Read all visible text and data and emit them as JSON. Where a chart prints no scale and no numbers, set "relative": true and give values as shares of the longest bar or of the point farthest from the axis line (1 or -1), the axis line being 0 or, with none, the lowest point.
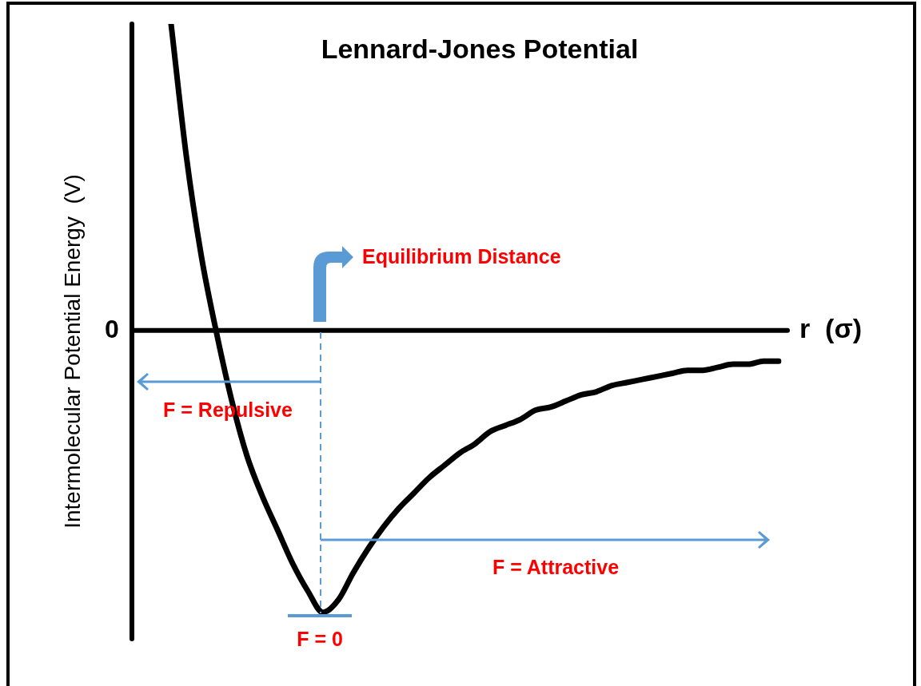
{
  "chart_data": {
    "type": "line",
    "title": "Lennard-Jones Potential",
    "xlabel": "r  (σ)",
    "ylabel": "Intermolecular Potential Energy  (V)",
    "relative": true,
    "legend": false,
    "categories": [
      null,
      null,
      null,
      null,
      null,
      null,
      null,
      null,
      null,
      null,
      null,
      null,
      null,
      null,
      null,
      null,
      null,
      null,
      null,
      null,
      null,
      null,
      null,
      null,
      null,
      null,
      null,
      null,
      null,
      null,
      null,
      null,
      null,
      null,
      null,
      null,
      null,
      null,
      null,
      null,
      null,
      null,
      null
    ],
    "series": [
      {
        "color": "#000000",
        "values": [
          null,
          null,
          1,
          0.57,
          0.24,
          -0.01,
          -0.23,
          -0.41,
          -0.54,
          -0.65,
          -0.76,
          -0.85,
          -0.92,
          -0.88,
          -0.79,
          -0.71,
          -0.64,
          -0.58,
          -0.53,
          -0.48,
          -0.44,
          -0.4,
          -0.37,
          -0.33,
          -0.31,
          -0.29,
          -0.26,
          -0.25,
          -0.23,
          -0.21,
          -0.2,
          -0.18,
          -0.17,
          -0.16,
          -0.15,
          -0.14,
          -0.13,
          -0.13,
          -0.12,
          -0.11,
          -0.11,
          -0.1,
          -0.1
        ]
      }
    ],
    "annotations": [
      "0",
      "Equilibrium Distance",
      "F = Repulsive",
      "F = Attractive",
      "F = 0"
    ]
  }
}
